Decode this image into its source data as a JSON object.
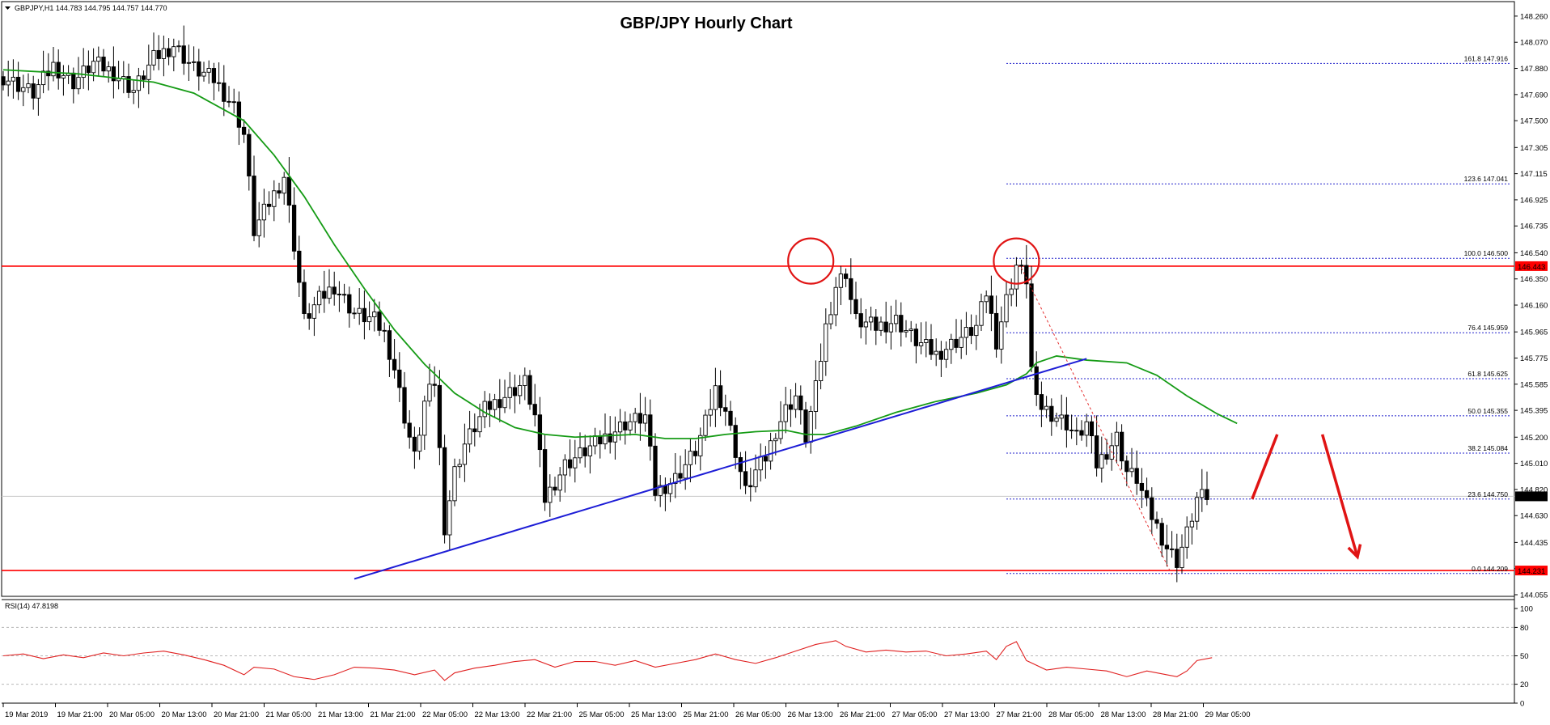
{
  "chart_data": {
    "type": "candlestick",
    "title": "GBP/JPY Hourly Chart",
    "symbol_header": "GBPJPY,H1  144.783 144.795 144.757 144.770",
    "ylim": [
      144.055,
      148.33
    ],
    "price_ticks": [
      "148.260",
      "148.070",
      "147.880",
      "147.690",
      "147.500",
      "147.305",
      "147.115",
      "146.925",
      "146.735",
      "146.540",
      "146.350",
      "146.160",
      "145.965",
      "145.775",
      "145.585",
      "145.395",
      "145.200",
      "145.010",
      "144.820",
      "144.630",
      "144.435",
      "144.245",
      "144.055"
    ],
    "time_labels": [
      "19 Mar 2019",
      "19 Mar 21:00",
      "20 Mar 05:00",
      "20 Mar 13:00",
      "20 Mar 21:00",
      "21 Mar 05:00",
      "21 Mar 13:00",
      "21 Mar 21:00",
      "22 Mar 05:00",
      "22 Mar 13:00",
      "22 Mar 21:00",
      "25 Mar 05:00",
      "25 Mar 13:00",
      "25 Mar 21:00",
      "26 Mar 05:00",
      "26 Mar 13:00",
      "26 Mar 21:00",
      "27 Mar 05:00",
      "27 Mar 13:00",
      "27 Mar 21:00",
      "28 Mar 05:00",
      "28 Mar 13:00",
      "28 Mar 21:00",
      "29 Mar 05:00"
    ],
    "current_price": "144.770",
    "resistance": {
      "value": 146.443,
      "label": "146.443"
    },
    "support": {
      "value": 144.231,
      "label": "144.231"
    },
    "fibonacci": [
      {
        "value": 147.916,
        "label": "161.8 147.916"
      },
      {
        "value": 147.041,
        "label": "123.6 147.041"
      },
      {
        "value": 146.5,
        "label": "100.0 146.500"
      },
      {
        "value": 145.959,
        "label": "76.4 145.959"
      },
      {
        "value": 145.625,
        "label": "61.8 145.625"
      },
      {
        "value": 145.355,
        "label": "50.0 145.355"
      },
      {
        "value": 145.084,
        "label": "38.2 145.084"
      },
      {
        "value": 144.75,
        "label": "23.6 144.750"
      },
      {
        "value": 144.209,
        "label": "0.0 144.209"
      }
    ],
    "close_path": [
      [
        0,
        147.82
      ],
      [
        6,
        147.7
      ],
      [
        10,
        147.9
      ],
      [
        14,
        147.78
      ],
      [
        18,
        147.92
      ],
      [
        22,
        147.85
      ],
      [
        26,
        147.72
      ],
      [
        30,
        147.95
      ],
      [
        34,
        148.05
      ],
      [
        38,
        147.88
      ],
      [
        42,
        147.8
      ],
      [
        46,
        147.6
      ],
      [
        48,
        147.4
      ],
      [
        50,
        146.7
      ],
      [
        53,
        146.9
      ],
      [
        56,
        147.1
      ],
      [
        58,
        146.6
      ],
      [
        60,
        146.05
      ],
      [
        63,
        146.2
      ],
      [
        66,
        146.3
      ],
      [
        70,
        146.1
      ],
      [
        74,
        146.05
      ],
      [
        76,
        145.95
      ],
      [
        78,
        145.7
      ],
      [
        80,
        145.35
      ],
      [
        82,
        145.05
      ],
      [
        84,
        145.45
      ],
      [
        86,
        145.6
      ],
      [
        87,
        145.1
      ],
      [
        88,
        144.55
      ],
      [
        90,
        144.95
      ],
      [
        92,
        145.15
      ],
      [
        96,
        145.4
      ],
      [
        100,
        145.5
      ],
      [
        104,
        145.6
      ],
      [
        106,
        145.35
      ],
      [
        108,
        144.75
      ],
      [
        112,
        145.0
      ],
      [
        116,
        145.1
      ],
      [
        120,
        145.2
      ],
      [
        124,
        145.3
      ],
      [
        128,
        145.35
      ],
      [
        130,
        144.8
      ],
      [
        134,
        144.9
      ],
      [
        138,
        145.1
      ],
      [
        140,
        145.3
      ],
      [
        142,
        145.55
      ],
      [
        144,
        145.4
      ],
      [
        146,
        145.1
      ],
      [
        148,
        144.8
      ],
      [
        150,
        144.95
      ],
      [
        152,
        145.05
      ],
      [
        154,
        145.25
      ],
      [
        156,
        145.4
      ],
      [
        158,
        145.5
      ],
      [
        160,
        145.2
      ],
      [
        162,
        145.55
      ],
      [
        164,
        146.0
      ],
      [
        166,
        146.3
      ],
      [
        168,
        146.4
      ],
      [
        169,
        146.2
      ],
      [
        170,
        146.05
      ],
      [
        174,
        146.0
      ],
      [
        178,
        146.05
      ],
      [
        182,
        145.9
      ],
      [
        186,
        145.8
      ],
      [
        190,
        145.9
      ],
      [
        194,
        146.0
      ],
      [
        196,
        146.25
      ],
      [
        198,
        145.9
      ],
      [
        200,
        146.2
      ],
      [
        202,
        146.45
      ],
      [
        204,
        146.35
      ],
      [
        205,
        145.7
      ],
      [
        206,
        145.45
      ],
      [
        208,
        145.4
      ],
      [
        212,
        145.3
      ],
      [
        214,
        145.2
      ],
      [
        216,
        145.3
      ],
      [
        218,
        145.0
      ],
      [
        220,
        145.1
      ],
      [
        222,
        145.2
      ],
      [
        224,
        144.95
      ],
      [
        226,
        144.9
      ],
      [
        228,
        144.7
      ],
      [
        230,
        144.55
      ],
      [
        232,
        144.4
      ],
      [
        234,
        144.3
      ],
      [
        236,
        144.5
      ],
      [
        238,
        144.75
      ],
      [
        240,
        144.77
      ]
    ],
    "ma_path": [
      [
        0,
        147.87
      ],
      [
        15,
        147.84
      ],
      [
        30,
        147.78
      ],
      [
        38,
        147.7
      ],
      [
        48,
        147.5
      ],
      [
        54,
        147.25
      ],
      [
        60,
        146.95
      ],
      [
        66,
        146.6
      ],
      [
        72,
        146.28
      ],
      [
        78,
        145.98
      ],
      [
        84,
        145.73
      ],
      [
        90,
        145.52
      ],
      [
        96,
        145.38
      ],
      [
        102,
        145.27
      ],
      [
        108,
        145.22
      ],
      [
        114,
        145.2
      ],
      [
        120,
        145.21
      ],
      [
        126,
        145.22
      ],
      [
        132,
        145.19
      ],
      [
        138,
        145.19
      ],
      [
        144,
        145.22
      ],
      [
        150,
        145.24
      ],
      [
        156,
        145.25
      ],
      [
        160,
        145.22
      ],
      [
        164,
        145.22
      ],
      [
        170,
        145.28
      ],
      [
        178,
        145.38
      ],
      [
        186,
        145.46
      ],
      [
        194,
        145.52
      ],
      [
        200,
        145.58
      ],
      [
        204,
        145.66
      ],
      [
        206,
        145.74
      ],
      [
        210,
        145.79
      ],
      [
        216,
        145.76
      ],
      [
        224,
        145.74
      ],
      [
        230,
        145.65
      ],
      [
        236,
        145.5
      ],
      [
        242,
        145.37
      ],
      [
        246,
        145.3
      ]
    ],
    "trendline": {
      "start": [
        70,
        144.17
      ],
      "end": [
        216,
        145.77
      ]
    },
    "dashed_line": {
      "start": [
        203,
        146.43
      ],
      "end": [
        233,
        144.2
      ]
    },
    "highlight_circles": [
      {
        "bar": 161,
        "price": 146.48
      },
      {
        "bar": 202,
        "price": 146.48
      }
    ],
    "forecast_arrows": [
      {
        "from": [
          249,
          144.75
        ],
        "to": [
          254,
          145.22
        ]
      },
      {
        "from": [
          263,
          145.22
        ],
        "to": [
          270,
          144.33
        ]
      }
    ],
    "rsi": {
      "label": "RSI(14) 47.8198",
      "ticks": [
        "100",
        "80",
        "50",
        "20",
        "0"
      ],
      "levels": [
        80,
        50,
        20
      ],
      "values": [
        [
          0,
          50
        ],
        [
          4,
          52
        ],
        [
          8,
          47
        ],
        [
          12,
          51
        ],
        [
          16,
          48
        ],
        [
          20,
          53
        ],
        [
          24,
          50
        ],
        [
          28,
          53
        ],
        [
          32,
          55
        ],
        [
          36,
          51
        ],
        [
          40,
          46
        ],
        [
          44,
          40
        ],
        [
          48,
          30
        ],
        [
          50,
          38
        ],
        [
          54,
          36
        ],
        [
          58,
          28
        ],
        [
          62,
          25
        ],
        [
          66,
          30
        ],
        [
          70,
          38
        ],
        [
          74,
          37
        ],
        [
          78,
          35
        ],
        [
          82,
          30
        ],
        [
          86,
          35
        ],
        [
          88,
          24
        ],
        [
          90,
          32
        ],
        [
          94,
          37
        ],
        [
          98,
          40
        ],
        [
          102,
          44
        ],
        [
          106,
          46
        ],
        [
          110,
          38
        ],
        [
          114,
          44
        ],
        [
          118,
          44
        ],
        [
          122,
          40
        ],
        [
          126,
          45
        ],
        [
          130,
          38
        ],
        [
          134,
          42
        ],
        [
          138,
          46
        ],
        [
          142,
          52
        ],
        [
          146,
          46
        ],
        [
          150,
          42
        ],
        [
          154,
          48
        ],
        [
          158,
          55
        ],
        [
          162,
          62
        ],
        [
          166,
          66
        ],
        [
          168,
          60
        ],
        [
          172,
          54
        ],
        [
          176,
          56
        ],
        [
          180,
          54
        ],
        [
          184,
          55
        ],
        [
          188,
          50
        ],
        [
          192,
          52
        ],
        [
          196,
          55
        ],
        [
          198,
          46
        ],
        [
          200,
          60
        ],
        [
          202,
          65
        ],
        [
          204,
          45
        ],
        [
          208,
          35
        ],
        [
          212,
          38
        ],
        [
          216,
          36
        ],
        [
          220,
          34
        ],
        [
          224,
          28
        ],
        [
          228,
          34
        ],
        [
          232,
          30
        ],
        [
          234,
          28
        ],
        [
          236,
          34
        ],
        [
          238,
          45
        ],
        [
          241,
          48
        ]
      ]
    }
  }
}
